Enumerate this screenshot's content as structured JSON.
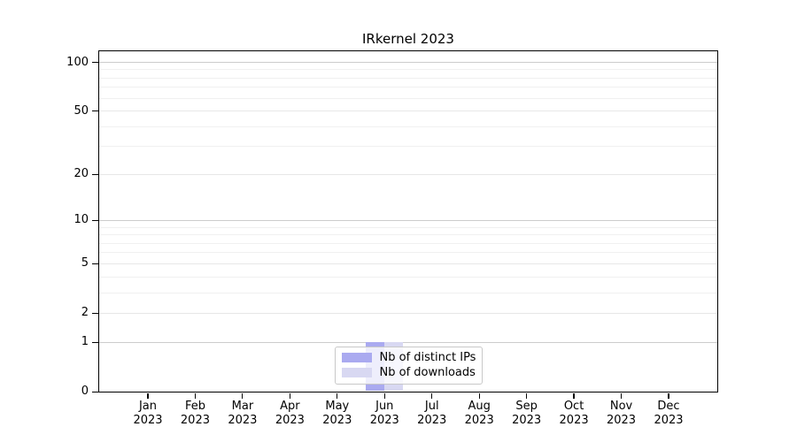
{
  "chart_data": {
    "type": "bar",
    "title": "IRkernel 2023",
    "categories": [
      "Jan",
      "Feb",
      "Mar",
      "Apr",
      "May",
      "Jun",
      "Jul",
      "Aug",
      "Sep",
      "Oct",
      "Nov",
      "Dec"
    ],
    "category_year": "2023",
    "series": [
      {
        "name": "Nb of distinct IPs",
        "color": "#aaaaf0",
        "values": [
          0,
          0,
          0,
          0,
          0,
          1,
          0,
          0,
          0,
          0,
          0,
          0
        ]
      },
      {
        "name": "Nb of downloads",
        "color": "#d8d8f2",
        "values": [
          0,
          0,
          0,
          0,
          0,
          1,
          0,
          0,
          0,
          0,
          0,
          0
        ]
      }
    ],
    "y_axis": {
      "scale": "log1p",
      "ticks": [
        0,
        1,
        2,
        5,
        10,
        20,
        50,
        100
      ],
      "minor_ticks": [
        3,
        4,
        6,
        7,
        8,
        9,
        30,
        40,
        60,
        70,
        80,
        90
      ],
      "max": 117
    },
    "legend": {
      "position": "lower center"
    },
    "colors": {
      "grid_power": "#cccccc",
      "grid_mid": "#e7e7e7",
      "grid_minor": "#f0f0f0",
      "spine": "#000000"
    }
  }
}
